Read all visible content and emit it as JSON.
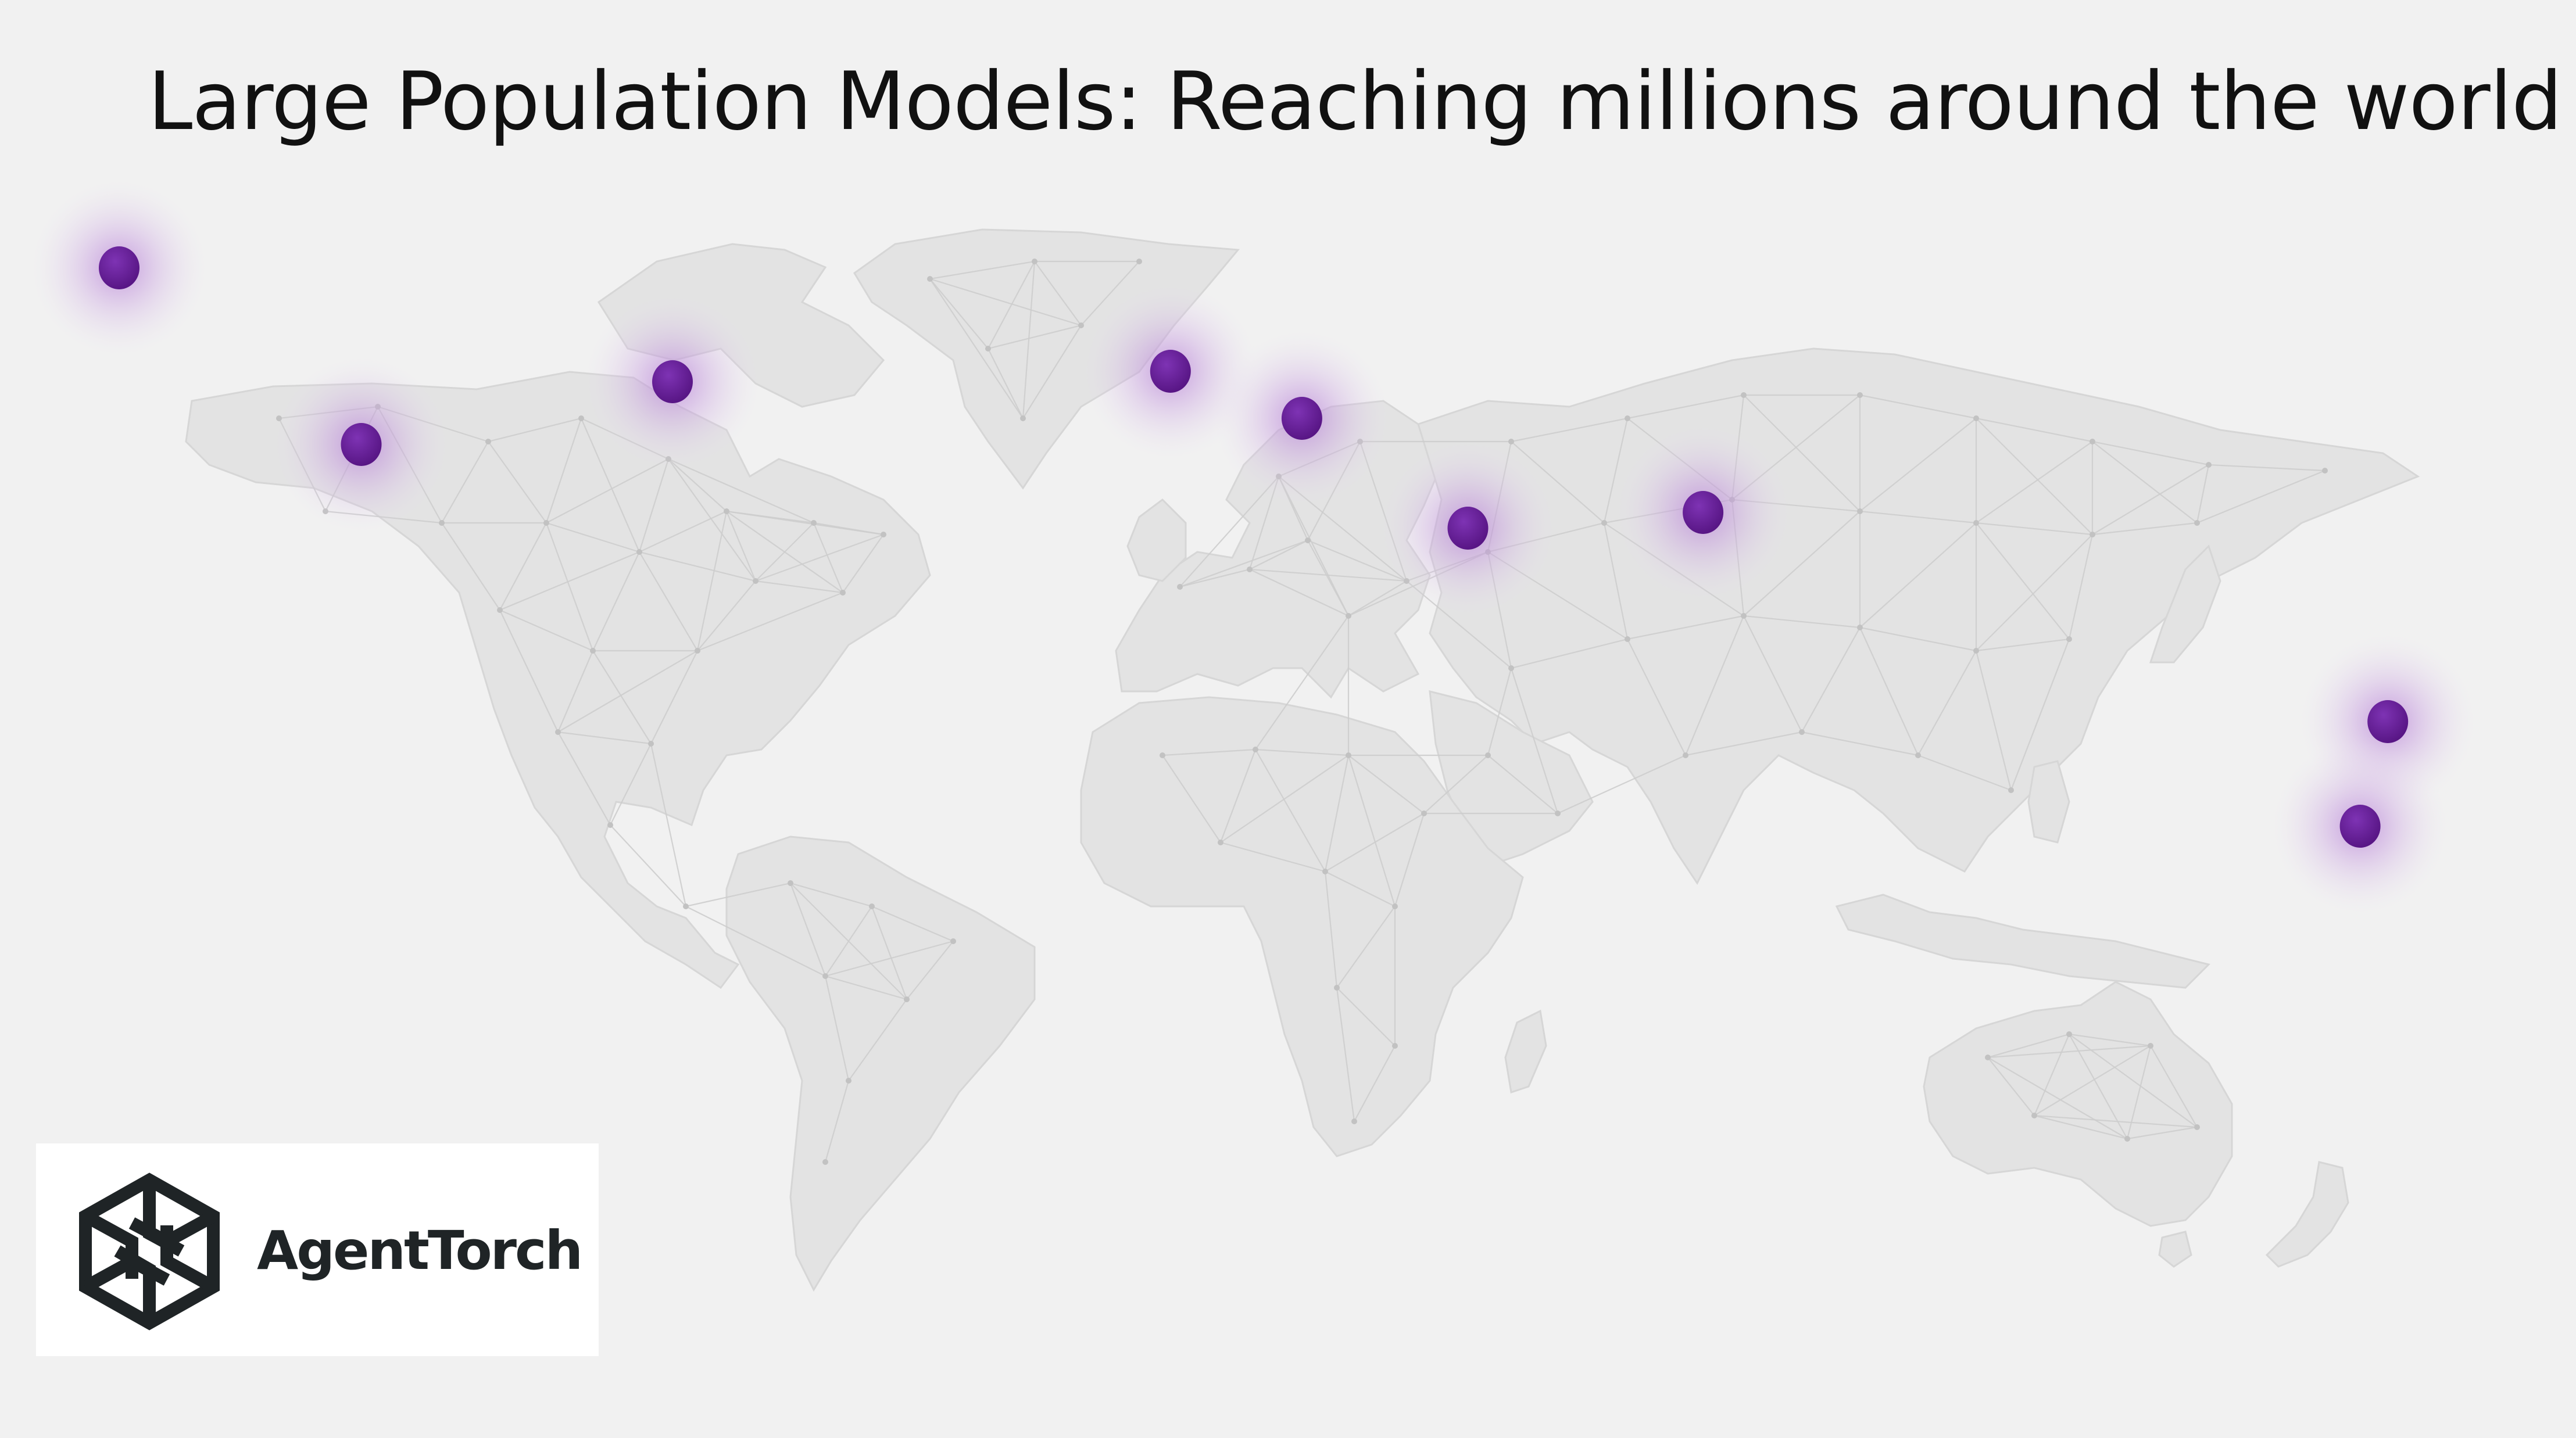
{
  "slide": {
    "title": "Large Population Models: Reaching millions around the world"
  },
  "map": {
    "land_color": "#e3e3e3",
    "mesh_color": "#cdcdcd",
    "marker_color": "#6a1f9c",
    "glow_color": "#b57ed6",
    "markers": [
      {
        "location": "Alaska / Northwest Canada",
        "lat": 63,
        "lon": -150
      },
      {
        "location": "Southwest United States",
        "lat": 35,
        "lon": -115
      },
      {
        "location": "Eastern Canada",
        "lat": 47,
        "lon": -70
      },
      {
        "location": "Western Europe",
        "lat": 49,
        "lon": 2
      },
      {
        "location": "Southeastern Europe",
        "lat": 40,
        "lon": 21
      },
      {
        "location": "Arabian Peninsula",
        "lat": 19,
        "lon": 45
      },
      {
        "location": "India",
        "lat": 22,
        "lon": 79
      },
      {
        "location": "Pacific (Fiji / Vanuatu)",
        "lat": -18,
        "lon": 178
      },
      {
        "location": "New Zealand",
        "lat": -38,
        "lon": 174
      }
    ]
  },
  "logo": {
    "name": "AgentTorch",
    "icon": "hexagon-aperture-icon",
    "color": "#1f2426"
  }
}
